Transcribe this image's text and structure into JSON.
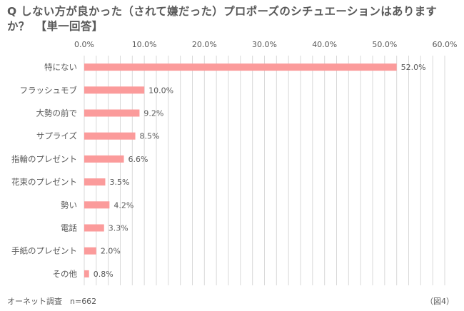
{
  "title": "Q しない方が良かった（されて嫌だった）プロポーズのシチュエーションはありますか？　【単一回答】",
  "footer": {
    "source": "オーネット調査　n=662",
    "figure": "（図4）"
  },
  "colors": {
    "bar": "#fb9b9b",
    "grid": "#d9d9d9",
    "text": "#595959"
  },
  "chart_data": {
    "type": "bar",
    "orientation": "horizontal",
    "title": "Q しない方が良かった（されて嫌だった）プロポーズのシチュエーションはありますか？　【単一回答】",
    "categories": [
      "特にない",
      "フラッシュモブ",
      "大勢の前で",
      "サプライズ",
      "指輪のプレゼント",
      "花束のプレゼント",
      "勢い",
      "電話",
      "手紙のプレゼント",
      "その他"
    ],
    "values": [
      52.0,
      10.0,
      9.2,
      8.5,
      6.6,
      3.5,
      4.2,
      3.3,
      2.0,
      0.8
    ],
    "value_labels": [
      "52.0%",
      "10.0%",
      "9.2%",
      "8.5%",
      "6.6%",
      "3.5%",
      "4.2%",
      "3.3%",
      "2.0%",
      "0.8%"
    ],
    "xlim": [
      0,
      60
    ],
    "ticks": [
      "0.0%",
      "10.0%",
      "20.0%",
      "30.0%",
      "40.0%",
      "50.0%",
      "60.0%"
    ],
    "axis_position": "top",
    "grid": true,
    "legend": "none"
  }
}
